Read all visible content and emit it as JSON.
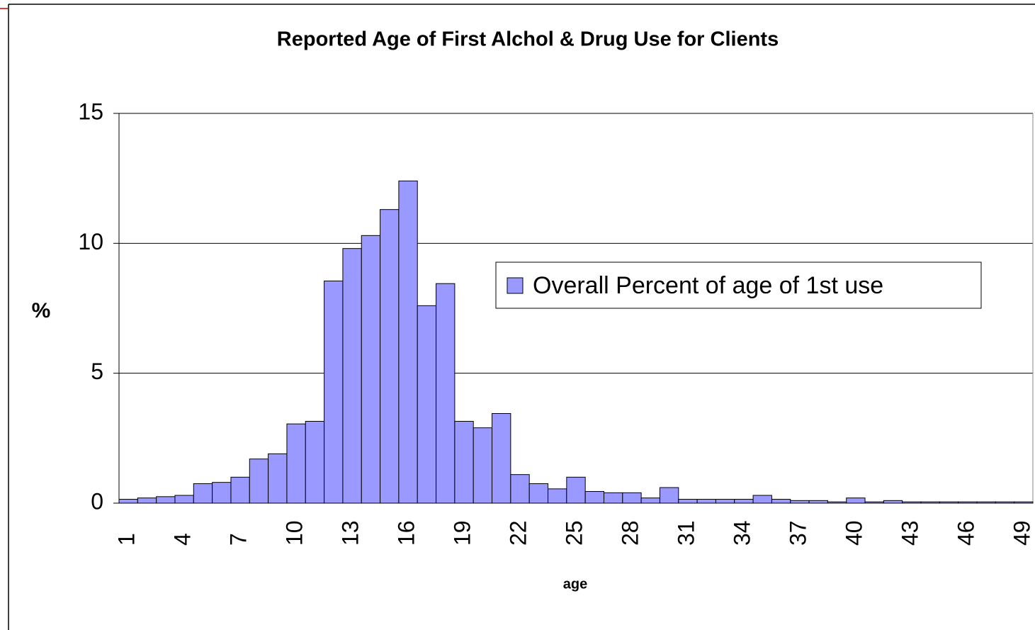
{
  "chart_data": {
    "type": "bar",
    "title": "Reported Age of First Alchol & Drug Use for Clients",
    "x_label": "age",
    "y_label": "%",
    "categories": [
      "1",
      null,
      null,
      "4",
      null,
      null,
      "7",
      null,
      null,
      "10",
      null,
      null,
      "13",
      null,
      null,
      "16",
      null,
      null,
      "19",
      null,
      null,
      "22",
      null,
      null,
      "25",
      null,
      null,
      "28",
      null,
      null,
      "31",
      null,
      null,
      "34",
      null,
      null,
      "37",
      null,
      null,
      "40",
      null,
      null,
      "43",
      null,
      null,
      "46",
      null,
      null,
      "49"
    ],
    "series": [
      {
        "name": "Overall Percent of age of 1st use",
        "color": "#9999ff",
        "values": [
          0.15,
          0.2,
          0.25,
          0.3,
          0.75,
          0.8,
          1.0,
          1.7,
          1.9,
          3.05,
          3.15,
          8.55,
          9.8,
          10.3,
          11.3,
          12.4,
          7.6,
          8.45,
          3.15,
          2.9,
          3.45,
          1.1,
          0.75,
          0.55,
          1.0,
          0.45,
          0.4,
          0.4,
          0.2,
          0.6,
          0.15,
          0.15,
          0.15,
          0.15,
          0.3,
          0.15,
          0.1,
          0.1,
          0.05,
          0.2,
          0.05,
          0.1,
          0.05,
          0.05,
          0.05,
          0.05,
          0.05,
          0.05,
          0.05
        ]
      }
    ],
    "ylim": [
      0,
      15
    ],
    "yticks": [
      0,
      5,
      10,
      15
    ],
    "grid": true,
    "legend": "right"
  }
}
